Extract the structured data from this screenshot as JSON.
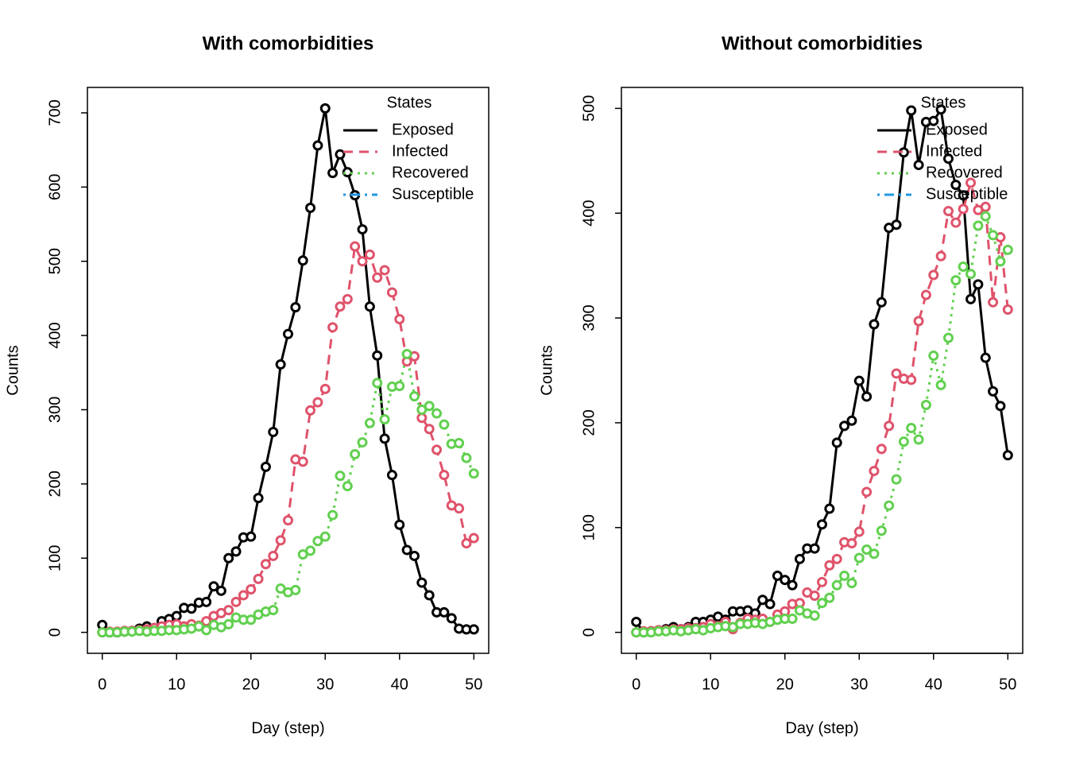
{
  "chart_data": [
    {
      "type": "line",
      "title": "With comorbidities",
      "xlabel": "Day (step)",
      "ylabel": "Counts",
      "x": [
        0,
        1,
        2,
        3,
        4,
        5,
        6,
        7,
        8,
        9,
        10,
        11,
        12,
        13,
        14,
        15,
        16,
        17,
        18,
        19,
        20,
        21,
        22,
        23,
        24,
        25,
        26,
        27,
        28,
        29,
        30,
        31,
        32,
        33,
        34,
        35,
        36,
        37,
        38,
        39,
        40,
        41,
        42,
        43,
        44,
        45,
        46,
        47,
        48,
        49,
        50
      ],
      "series": [
        {
          "name": "Exposed",
          "color": "#000000",
          "linestyle": "solid",
          "values": [
            10,
            0,
            0,
            1,
            2,
            5,
            8,
            3,
            15,
            18,
            22,
            33,
            32,
            40,
            41,
            62,
            56,
            100,
            109,
            128,
            129,
            181,
            223,
            270,
            361,
            402,
            438,
            501,
            572,
            656,
            706,
            619,
            644,
            620,
            589,
            543,
            439,
            373,
            261,
            212,
            145,
            111,
            103,
            67,
            50,
            27,
            27,
            19,
            5,
            4,
            4
          ]
        },
        {
          "name": "Infected",
          "color": "#DF536B",
          "linestyle": "dashed",
          "values": [
            0,
            1,
            1,
            2,
            2,
            3,
            4,
            6,
            8,
            10,
            11,
            8,
            11,
            9,
            15,
            22,
            26,
            30,
            41,
            50,
            58,
            72,
            92,
            103,
            124,
            151,
            233,
            230,
            299,
            310,
            328,
            411,
            439,
            449,
            520,
            500,
            509,
            478,
            488,
            458,
            422,
            365,
            372,
            289,
            274,
            246,
            212,
            171,
            167,
            120,
            127
          ]
        },
        {
          "name": "Recovered",
          "color": "#61D04F",
          "linestyle": "dotted",
          "values": [
            0,
            0,
            0,
            1,
            1,
            2,
            1,
            2,
            2,
            3,
            3,
            4,
            5,
            8,
            3,
            10,
            7,
            11,
            20,
            17,
            17,
            24,
            28,
            30,
            59,
            54,
            57,
            105,
            110,
            123,
            129,
            158,
            211,
            197,
            240,
            256,
            282,
            336,
            287,
            331,
            332,
            375,
            318,
            300,
            305,
            295,
            280,
            254,
            255,
            235,
            214
          ]
        },
        {
          "name": "Susceptible",
          "color": "#2297E6",
          "linestyle": "dotdash",
          "values": [
            null,
            null,
            null,
            null,
            null,
            null,
            null,
            null,
            null,
            null,
            null,
            null,
            null,
            null,
            null,
            null,
            null,
            null,
            null,
            null,
            null,
            null,
            null,
            null,
            null,
            null,
            null,
            null,
            null,
            null,
            null,
            null,
            null,
            null,
            null,
            null,
            null,
            null,
            null,
            null,
            null,
            null,
            null,
            null,
            null,
            null,
            null,
            null,
            null,
            null,
            null
          ]
        }
      ],
      "xlim": [
        -2,
        52
      ],
      "ylim": [
        -28.24,
        734.24
      ],
      "xticks": [
        0,
        10,
        20,
        30,
        40,
        50
      ],
      "yticks": [
        0,
        100,
        200,
        300,
        400,
        500,
        600,
        700
      ],
      "legend_title": "States",
      "legend": "topright"
    },
    {
      "type": "line",
      "title": "Without comorbidities",
      "xlabel": "Day (step)",
      "ylabel": "Counts",
      "x": [
        0,
        1,
        2,
        3,
        4,
        5,
        6,
        7,
        8,
        9,
        10,
        11,
        12,
        13,
        14,
        15,
        16,
        17,
        18,
        19,
        20,
        21,
        22,
        23,
        24,
        25,
        26,
        27,
        28,
        29,
        30,
        31,
        32,
        33,
        34,
        35,
        36,
        37,
        38,
        39,
        40,
        41,
        42,
        43,
        44,
        45,
        46,
        47,
        48,
        49,
        50
      ],
      "series": [
        {
          "name": "Exposed",
          "color": "#000000",
          "linestyle": "solid",
          "values": [
            10,
            0,
            1,
            2,
            3,
            5,
            3,
            5,
            10,
            10,
            12,
            15,
            12,
            20,
            20,
            21,
            18,
            31,
            27,
            54,
            50,
            45,
            70,
            80,
            80,
            103,
            118,
            181,
            197,
            202,
            240,
            225,
            294,
            315,
            386,
            389,
            458,
            498,
            446,
            487,
            488,
            499,
            452,
            427,
            417,
            318,
            332,
            262,
            230,
            216,
            169
          ]
        },
        {
          "name": "Infected",
          "color": "#DF536B",
          "linestyle": "dashed",
          "values": [
            0,
            1,
            1,
            2,
            2,
            3,
            3,
            4,
            4,
            5,
            8,
            6,
            10,
            3,
            9,
            13,
            12,
            13,
            10,
            17,
            20,
            27,
            28,
            38,
            35,
            48,
            64,
            70,
            86,
            85,
            96,
            134,
            154,
            175,
            197,
            247,
            242,
            241,
            297,
            322,
            341,
            359,
            402,
            391,
            404,
            429,
            403,
            406,
            315,
            377,
            308
          ]
        },
        {
          "name": "Recovered",
          "color": "#61D04F",
          "linestyle": "dotted",
          "values": [
            0,
            0,
            0,
            1,
            1,
            2,
            1,
            2,
            3,
            2,
            4,
            5,
            6,
            5,
            8,
            8,
            9,
            8,
            10,
            12,
            13,
            13,
            21,
            18,
            16,
            28,
            33,
            45,
            54,
            47,
            71,
            79,
            75,
            97,
            121,
            146,
            182,
            195,
            184,
            217,
            264,
            236,
            281,
            336,
            349,
            342,
            388,
            397,
            379,
            354,
            365
          ]
        },
        {
          "name": "Susceptible",
          "color": "#2297E6",
          "linestyle": "dotdash",
          "values": [
            null,
            null,
            null,
            null,
            null,
            null,
            null,
            null,
            null,
            null,
            null,
            null,
            null,
            null,
            null,
            null,
            null,
            null,
            null,
            null,
            null,
            null,
            null,
            null,
            null,
            null,
            null,
            null,
            null,
            null,
            null,
            null,
            null,
            null,
            null,
            null,
            null,
            null,
            null,
            null,
            null,
            null,
            null,
            null,
            null,
            null,
            null,
            null,
            null,
            null,
            null
          ]
        }
      ],
      "xlim": [
        -2,
        52
      ],
      "ylim": [
        -20,
        520
      ],
      "xticks": [
        0,
        10,
        20,
        30,
        40,
        50
      ],
      "yticks": [
        0,
        100,
        200,
        300,
        400,
        500
      ],
      "legend_title": "States",
      "legend": "topright"
    }
  ]
}
